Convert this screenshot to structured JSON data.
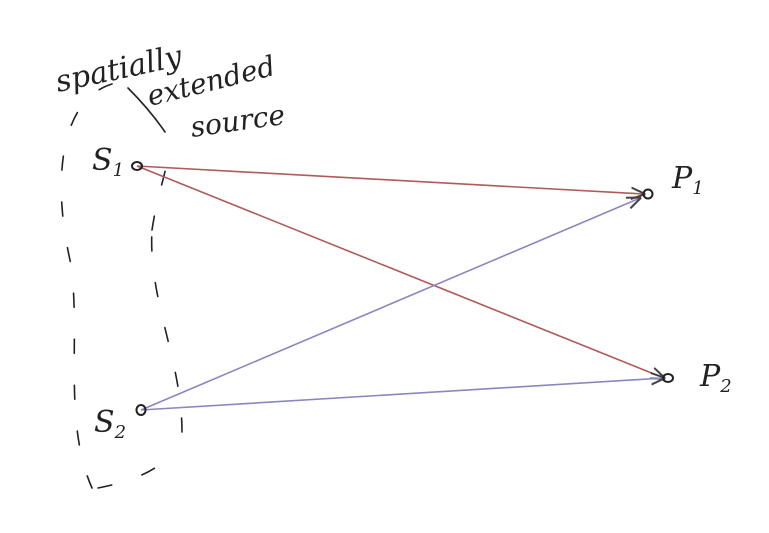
{
  "labels": {
    "source_line1": "spatially",
    "source_line2": "extended",
    "source_line3": "source",
    "s1": {
      "letter": "S",
      "sub": "1"
    },
    "s2": {
      "letter": "S",
      "sub": "2"
    },
    "p1": {
      "letter": "P",
      "sub": "1"
    },
    "p2": {
      "letter": "P",
      "sub": "2"
    }
  },
  "colors": {
    "red_ray": "#b05a5a",
    "blue_ray": "#8a86c2",
    "ink": "#222222"
  }
}
